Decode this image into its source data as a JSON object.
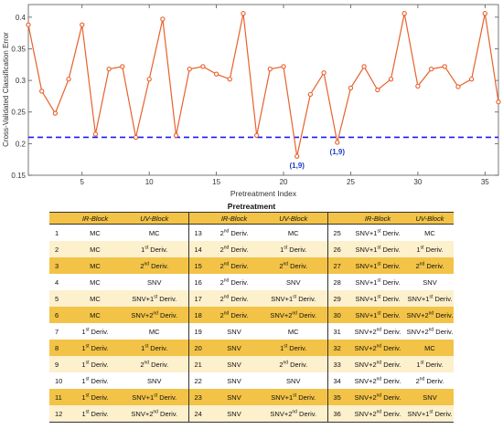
{
  "chart_data": {
    "type": "line",
    "xlabel": "Pretreatment Index",
    "ylabel": "Cross-Validated Classification Error",
    "xlim": [
      1,
      36
    ],
    "ylim": [
      0.15,
      0.42
    ],
    "xticks": [
      5,
      10,
      15,
      20,
      25,
      30,
      35
    ],
    "yticks": [
      0.15,
      0.2,
      0.25,
      0.3,
      0.35,
      0.4
    ],
    "ytick_labels": [
      "0.15",
      "0.2",
      "0.25",
      "0.3",
      "0.35",
      "0.4"
    ],
    "x": [
      1,
      2,
      3,
      4,
      5,
      6,
      7,
      8,
      9,
      10,
      11,
      12,
      13,
      14,
      15,
      16,
      17,
      18,
      19,
      20,
      21,
      22,
      23,
      24,
      25,
      26,
      27,
      28,
      29,
      30,
      31,
      32,
      33,
      34,
      35,
      36
    ],
    "series": [
      {
        "color": "#e8612c",
        "values": [
          0.388,
          0.283,
          0.248,
          0.302,
          0.388,
          0.215,
          0.318,
          0.322,
          0.21,
          0.302,
          0.397,
          0.213,
          0.318,
          0.322,
          0.31,
          0.302,
          0.406,
          0.213,
          0.318,
          0.322,
          0.18,
          0.278,
          0.312,
          0.202,
          0.288,
          0.322,
          0.285,
          0.302,
          0.406,
          0.291,
          0.318,
          0.322,
          0.29,
          0.302,
          0.406,
          0.266
        ]
      }
    ],
    "reference_line": {
      "y": 0.21,
      "color": "#1a1aff",
      "style": "dashed"
    },
    "annotations": [
      {
        "x": 21,
        "y": 0.18,
        "text": "(1,9)"
      },
      {
        "x": 24,
        "y": 0.202,
        "text": "(1,9)"
      }
    ],
    "grid": false
  },
  "table": {
    "title": "Pretreatment",
    "headers": [
      "IR-Block",
      "UV-Block"
    ],
    "rows": [
      [
        [
          "1",
          "MC",
          "MC"
        ],
        [
          "13",
          "2|nd| Deriv.",
          "MC"
        ],
        [
          "25",
          "SNV+1|st| Deriv.",
          "MC"
        ]
      ],
      [
        [
          "2",
          "MC",
          "1|st| Deriv."
        ],
        [
          "14",
          "2|nd| Deriv.",
          "1|st| Deriv."
        ],
        [
          "26",
          "SNV+1|st| Deriv.",
          "1|st| Deriv."
        ]
      ],
      [
        [
          "3",
          "MC",
          "2|nd| Deriv."
        ],
        [
          "15",
          "2|nd| Deriv.",
          "2|nd| Deriv."
        ],
        [
          "27",
          "SNV+1|st| Deriv.",
          "2|nd| Deriv."
        ]
      ],
      [
        [
          "4",
          "MC",
          "SNV"
        ],
        [
          "16",
          "2|nd| Deriv.",
          "SNV"
        ],
        [
          "28",
          "SNV+1|st| Deriv.",
          "SNV"
        ]
      ],
      [
        [
          "5",
          "MC",
          "SNV+1|st| Deriv."
        ],
        [
          "17",
          "2|nd| Deriv.",
          "SNV+1|st| Deriv."
        ],
        [
          "29",
          "SNV+1|st| Deriv.",
          "SNV+1|st| Deriv."
        ]
      ],
      [
        [
          "6",
          "MC",
          "SNV+2|nd| Deriv."
        ],
        [
          "18",
          "2|nd| Deriv.",
          "SNV+2|nd| Deriv."
        ],
        [
          "30",
          "SNV+1|st| Deriv.",
          "SNV+2|nd| Deriv."
        ]
      ],
      [
        [
          "7",
          "1|st| Deriv.",
          "MC"
        ],
        [
          "19",
          "SNV",
          "MC"
        ],
        [
          "31",
          "SNV+2|nd| Deriv.",
          "SNV+2|nd| Deriv."
        ]
      ],
      [
        [
          "8",
          "1|st| Deriv.",
          "1|st| Deriv."
        ],
        [
          "20",
          "SNV",
          "1|st| Deriv."
        ],
        [
          "32",
          "SNV+2|nd| Deriv.",
          "MC"
        ]
      ],
      [
        [
          "9",
          "1|st| Deriv.",
          "2|nd| Deriv."
        ],
        [
          "21",
          "SNV",
          "2|nd| Deriv."
        ],
        [
          "33",
          "SNV+2|nd| Deriv.",
          "1|st| Deriv."
        ]
      ],
      [
        [
          "10",
          "1|st| Deriv.",
          "SNV"
        ],
        [
          "22",
          "SNV",
          "SNV"
        ],
        [
          "34",
          "SNV+2|nd| Deriv.",
          "2|nd| Deriv."
        ]
      ],
      [
        [
          "11",
          "1|st| Deriv.",
          "SNV+1|st| Deriv."
        ],
        [
          "23",
          "SNV",
          "SNV+1|st| Deriv."
        ],
        [
          "35",
          "SNV+2|nd| Deriv.",
          "SNV"
        ]
      ],
      [
        [
          "12",
          "1|st| Deriv.",
          "SNV+2|nd| Deriv."
        ],
        [
          "24",
          "SNV",
          "SNV+2|nd| Deriv."
        ],
        [
          "36",
          "SNV+2|nd| Deriv.",
          "SNV+1|st| Deriv."
        ]
      ]
    ],
    "row_styles": [
      "white",
      "light",
      "gold",
      "white",
      "light",
      "gold",
      "white",
      "gold",
      "light",
      "white",
      "gold",
      "light"
    ]
  }
}
